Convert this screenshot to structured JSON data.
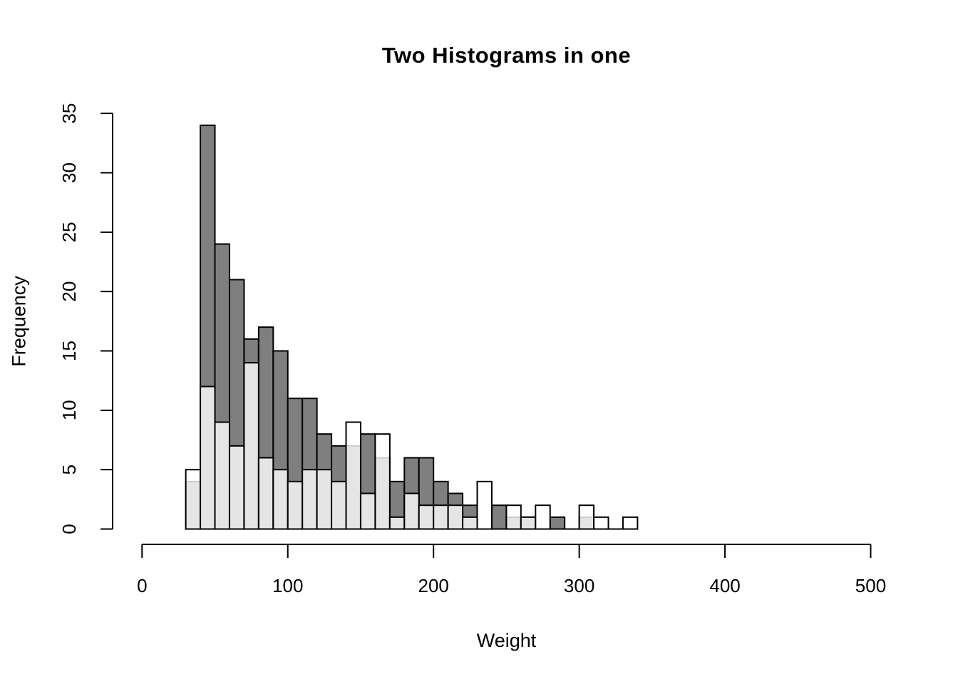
{
  "title": "Two Histograms in one",
  "x_axis": {
    "label": "Weight",
    "ticks": [
      0,
      100,
      200,
      300,
      400,
      500
    ],
    "min": 0,
    "max": 500
  },
  "y_axis": {
    "label": "Frequency",
    "ticks": [
      0,
      5,
      10,
      15,
      20,
      25,
      30,
      35
    ],
    "min": 0,
    "max": 35
  },
  "colors": {
    "dark_bar_fill": "#7f7f7f",
    "white_bar_fill": "rgba(255,255,255,0.8)",
    "overlap_appearance": "#e5e5e5",
    "bar_border": "#000000",
    "axis": "#000000",
    "background": "#ffffff"
  },
  "chart_data": {
    "type": "bar",
    "subtype": "overlaid-histograms",
    "title": "Two Histograms in one",
    "xlabel": "Weight",
    "ylabel": "Frequency",
    "xlim": [
      0,
      500
    ],
    "ylim": [
      0,
      35
    ],
    "grid": false,
    "legend": false,
    "bin_width": 10,
    "bin_starts": [
      30,
      40,
      50,
      60,
      70,
      80,
      90,
      100,
      110,
      120,
      130,
      140,
      150,
      160,
      170,
      180,
      190,
      200,
      210,
      220,
      230,
      240,
      250,
      260,
      270,
      280,
      290,
      300,
      310,
      320,
      330
    ],
    "series": [
      {
        "name": "dark-gray-histogram",
        "fill": "#7f7f7f",
        "draw_order": 1,
        "values": [
          4,
          34,
          24,
          21,
          16,
          17,
          15,
          11,
          11,
          8,
          7,
          7,
          8,
          6,
          4,
          6,
          6,
          4,
          3,
          2,
          0,
          2,
          1,
          1,
          0,
          1,
          0,
          1,
          0,
          0,
          0
        ]
      },
      {
        "name": "translucent-white-histogram",
        "fill": "rgba(255,255,255,0.8)",
        "draw_order": 2,
        "values": [
          5,
          12,
          9,
          7,
          14,
          6,
          5,
          4,
          5,
          5,
          4,
          9,
          3,
          8,
          1,
          3,
          2,
          2,
          2,
          1,
          4,
          0,
          2,
          1,
          2,
          0,
          0,
          2,
          1,
          0,
          1
        ]
      }
    ]
  }
}
